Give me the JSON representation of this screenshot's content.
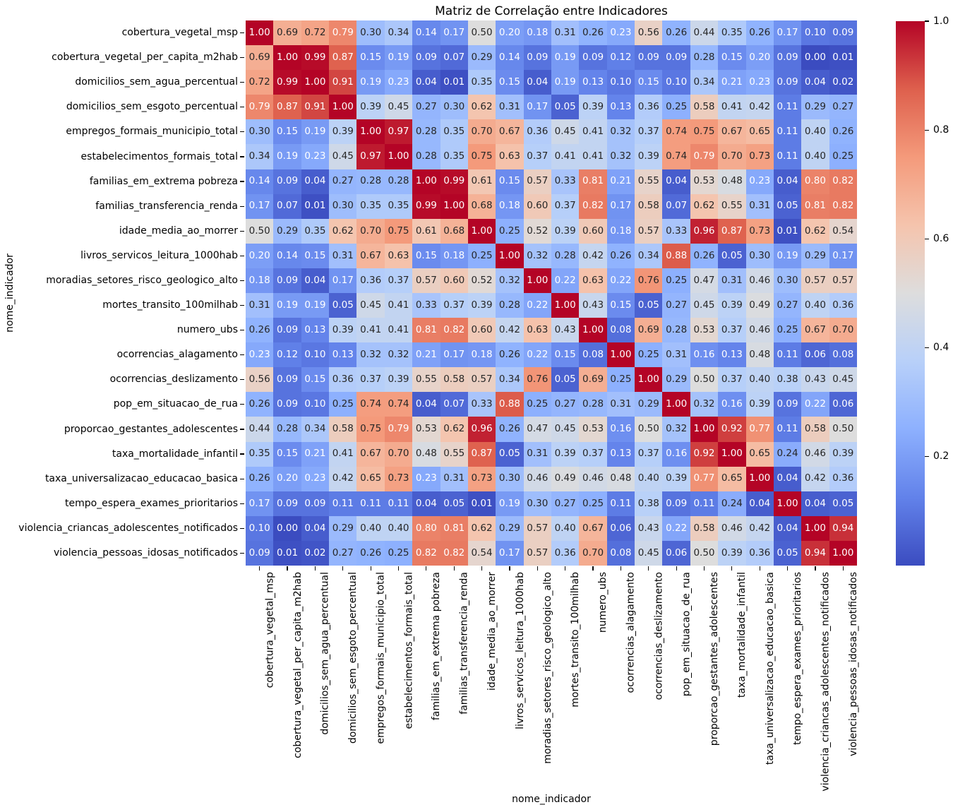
{
  "title": "Matriz de Correlação entre Indicadores",
  "axis": {
    "x_label": "nome_indicador",
    "y_label": "nome_indicador"
  },
  "colors": {
    "background": "#ffffff",
    "colormap_name": "coolwarm",
    "colormap_stops": [
      "#3b4cc0",
      "#6282ea",
      "#8db0fe",
      "#b8d0f9",
      "#dddddd",
      "#f5c4ad",
      "#f49a7b",
      "#de604d",
      "#b40426"
    ],
    "annot_dark_text": "#262626",
    "annot_light_text": "#ffffff"
  },
  "colorbar": {
    "tick_labels": [
      "1.0",
      "0.8",
      "0.6",
      "0.4",
      "0.2"
    ],
    "tick_values": [
      1.0,
      0.8,
      0.6,
      0.4,
      0.2
    ]
  },
  "chart_data": {
    "type": "heatmap",
    "title": "Matriz de Correlação entre Indicadores",
    "xlabel": "nome_indicador",
    "ylabel": "nome_indicador",
    "value_range": [
      0.0,
      1.0
    ],
    "annotation_decimals": 2,
    "legend_position": "right-colorbar",
    "grid": false,
    "labels": [
      "cobertura_vegetal_msp",
      "cobertura_vegetal_per_capita_m2hab",
      "domicilios_sem_agua_percentual",
      "domicilios_sem_esgoto_percentual",
      "empregos_formais_municipio_total",
      "estabelecimentos_formais_total",
      "familias_em_extrema pobreza",
      "familias_transferencia_renda",
      "idade_media_ao_morrer",
      "livros_servicos_leitura_1000hab",
      "moradias_setores_risco_geologico_alto",
      "mortes_transito_100milhab",
      "numero_ubs",
      "ocorrencias_alagamento",
      "ocorrencias_deslizamento",
      "pop_em_situacao_de_rua",
      "proporcao_gestantes_adolescentes",
      "taxa_mortalidade_infantil",
      "taxa_universalizacao_educacao_basica",
      "tempo_espera_exames_prioritarios",
      "violencia_criancas_adolescentes_notificados",
      "violencia_pessoas_idosas_notificados"
    ],
    "matrix": [
      [
        1.0,
        0.69,
        0.72,
        0.79,
        0.3,
        0.34,
        0.14,
        0.17,
        0.5,
        0.2,
        0.18,
        0.31,
        0.26,
        0.23,
        0.56,
        0.26,
        0.44,
        0.35,
        0.26,
        0.17,
        0.1,
        0.09
      ],
      [
        0.69,
        1.0,
        0.99,
        0.87,
        0.15,
        0.19,
        0.09,
        0.07,
        0.29,
        0.14,
        0.09,
        0.19,
        0.09,
        0.12,
        0.09,
        0.09,
        0.28,
        0.15,
        0.2,
        0.09,
        0.0,
        0.01
      ],
      [
        0.72,
        0.99,
        1.0,
        0.91,
        0.19,
        0.23,
        0.04,
        0.01,
        0.35,
        0.15,
        0.04,
        0.19,
        0.13,
        0.1,
        0.15,
        0.1,
        0.34,
        0.21,
        0.23,
        0.09,
        0.04,
        0.02
      ],
      [
        0.79,
        0.87,
        0.91,
        1.0,
        0.39,
        0.45,
        0.27,
        0.3,
        0.62,
        0.31,
        0.17,
        0.05,
        0.39,
        0.13,
        0.36,
        0.25,
        0.58,
        0.41,
        0.42,
        0.11,
        0.29,
        0.27
      ],
      [
        0.3,
        0.15,
        0.19,
        0.39,
        1.0,
        0.97,
        0.28,
        0.35,
        0.7,
        0.67,
        0.36,
        0.45,
        0.41,
        0.32,
        0.37,
        0.74,
        0.75,
        0.67,
        0.65,
        0.11,
        0.4,
        0.26
      ],
      [
        0.34,
        0.19,
        0.23,
        0.45,
        0.97,
        1.0,
        0.28,
        0.35,
        0.75,
        0.63,
        0.37,
        0.41,
        0.41,
        0.32,
        0.39,
        0.74,
        0.79,
        0.7,
        0.73,
        0.11,
        0.4,
        0.25
      ],
      [
        0.14,
        0.09,
        0.04,
        0.27,
        0.28,
        0.28,
        1.0,
        0.99,
        0.61,
        0.15,
        0.57,
        0.33,
        0.81,
        0.21,
        0.55,
        0.04,
        0.53,
        0.48,
        0.23,
        0.04,
        0.8,
        0.82
      ],
      [
        0.17,
        0.07,
        0.01,
        0.3,
        0.35,
        0.35,
        0.99,
        1.0,
        0.68,
        0.18,
        0.6,
        0.37,
        0.82,
        0.17,
        0.58,
        0.07,
        0.62,
        0.55,
        0.31,
        0.05,
        0.81,
        0.82
      ],
      [
        0.5,
        0.29,
        0.35,
        0.62,
        0.7,
        0.75,
        0.61,
        0.68,
        1.0,
        0.25,
        0.52,
        0.39,
        0.6,
        0.18,
        0.57,
        0.33,
        0.96,
        0.87,
        0.73,
        0.01,
        0.62,
        0.54
      ],
      [
        0.2,
        0.14,
        0.15,
        0.31,
        0.67,
        0.63,
        0.15,
        0.18,
        0.25,
        1.0,
        0.32,
        0.28,
        0.42,
        0.26,
        0.34,
        0.88,
        0.26,
        0.05,
        0.3,
        0.19,
        0.29,
        0.17
      ],
      [
        0.18,
        0.09,
        0.04,
        0.17,
        0.36,
        0.37,
        0.57,
        0.6,
        0.52,
        0.32,
        1.0,
        0.22,
        0.63,
        0.22,
        0.76,
        0.25,
        0.47,
        0.31,
        0.46,
        0.3,
        0.57,
        0.57
      ],
      [
        0.31,
        0.19,
        0.19,
        0.05,
        0.45,
        0.41,
        0.33,
        0.37,
        0.39,
        0.28,
        0.22,
        1.0,
        0.43,
        0.15,
        0.05,
        0.27,
        0.45,
        0.39,
        0.49,
        0.27,
        0.4,
        0.36
      ],
      [
        0.26,
        0.09,
        0.13,
        0.39,
        0.41,
        0.41,
        0.81,
        0.82,
        0.6,
        0.42,
        0.63,
        0.43,
        1.0,
        0.08,
        0.69,
        0.28,
        0.53,
        0.37,
        0.46,
        0.25,
        0.67,
        0.7
      ],
      [
        0.23,
        0.12,
        0.1,
        0.13,
        0.32,
        0.32,
        0.21,
        0.17,
        0.18,
        0.26,
        0.22,
        0.15,
        0.08,
        1.0,
        0.25,
        0.31,
        0.16,
        0.13,
        0.48,
        0.11,
        0.06,
        0.08
      ],
      [
        0.56,
        0.09,
        0.15,
        0.36,
        0.37,
        0.39,
        0.55,
        0.58,
        0.57,
        0.34,
        0.76,
        0.05,
        0.69,
        0.25,
        1.0,
        0.29,
        0.5,
        0.37,
        0.4,
        0.38,
        0.43,
        0.45
      ],
      [
        0.26,
        0.09,
        0.1,
        0.25,
        0.74,
        0.74,
        0.04,
        0.07,
        0.33,
        0.88,
        0.25,
        0.27,
        0.28,
        0.31,
        0.29,
        1.0,
        0.32,
        0.16,
        0.39,
        0.09,
        0.22,
        0.06
      ],
      [
        0.44,
        0.28,
        0.34,
        0.58,
        0.75,
        0.79,
        0.53,
        0.62,
        0.96,
        0.26,
        0.47,
        0.45,
        0.53,
        0.16,
        0.5,
        0.32,
        1.0,
        0.92,
        0.77,
        0.11,
        0.58,
        0.5
      ],
      [
        0.35,
        0.15,
        0.21,
        0.41,
        0.67,
        0.7,
        0.48,
        0.55,
        0.87,
        0.05,
        0.31,
        0.39,
        0.37,
        0.13,
        0.37,
        0.16,
        0.92,
        1.0,
        0.65,
        0.24,
        0.46,
        0.39
      ],
      [
        0.26,
        0.2,
        0.23,
        0.42,
        0.65,
        0.73,
        0.23,
        0.31,
        0.73,
        0.3,
        0.46,
        0.49,
        0.46,
        0.48,
        0.4,
        0.39,
        0.77,
        0.65,
        1.0,
        0.04,
        0.42,
        0.36
      ],
      [
        0.17,
        0.09,
        0.09,
        0.11,
        0.11,
        0.11,
        0.04,
        0.05,
        0.01,
        0.19,
        0.3,
        0.27,
        0.25,
        0.11,
        0.38,
        0.09,
        0.11,
        0.24,
        0.04,
        1.0,
        0.04,
        0.05
      ],
      [
        0.1,
        0.0,
        0.04,
        0.29,
        0.4,
        0.4,
        0.8,
        0.81,
        0.62,
        0.29,
        0.57,
        0.4,
        0.67,
        0.06,
        0.43,
        0.22,
        0.58,
        0.46,
        0.42,
        0.04,
        1.0,
        0.94
      ],
      [
        0.09,
        0.01,
        0.02,
        0.27,
        0.26,
        0.25,
        0.82,
        0.82,
        0.54,
        0.17,
        0.57,
        0.36,
        0.7,
        0.08,
        0.45,
        0.06,
        0.5,
        0.39,
        0.36,
        0.05,
        0.94,
        1.0
      ]
    ]
  }
}
